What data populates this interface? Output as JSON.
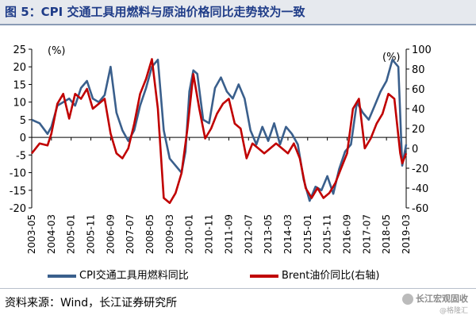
{
  "figure": {
    "title": "图 5：CPI 交通工具用燃料与原油价格同比走势较为一致",
    "source": "资料来源：Wind，长江证券研究所",
    "watermark_main": "长江宏观固收",
    "watermark_sub": "@格隆汇"
  },
  "legend": {
    "series1": "CPI交通工具用燃料同比",
    "series2": "Brent油价同比(右轴)"
  },
  "colors": {
    "cpi": "#3a5f8c",
    "brent": "#c00000"
  },
  "chart_data": {
    "type": "line",
    "left_unit": "(%)",
    "right_unit": "(%)",
    "ylim_left": [
      -20,
      25
    ],
    "ylim_right": [
      -60,
      100
    ],
    "yticks_left": [
      -20,
      -15,
      -10,
      -5,
      0,
      5,
      10,
      15,
      20,
      25
    ],
    "yticks_right": [
      -60,
      -40,
      -20,
      0,
      20,
      40,
      60,
      80,
      100
    ],
    "x_start": "2003-05",
    "x_end": "2019-03",
    "x_ticks": [
      "2003-05",
      "2004-03",
      "2005-01",
      "2005-11",
      "2006-09",
      "2007-07",
      "2008-05",
      "2009-03",
      "2010-01",
      "2010-11",
      "2011-09",
      "2012-07",
      "2013-05",
      "2014-03",
      "2015-01",
      "2015-11",
      "2016-09",
      "2017-07",
      "2018-05",
      "2019-03"
    ],
    "grid": false,
    "legend_position": "bottom",
    "series": [
      {
        "name": "CPI交通工具用燃料同比",
        "axis": "left",
        "points": [
          [
            "2003-05",
            5
          ],
          [
            "2003-09",
            4
          ],
          [
            "2004-01",
            1
          ],
          [
            "2004-03",
            3
          ],
          [
            "2004-06",
            9
          ],
          [
            "2004-09",
            10
          ],
          [
            "2004-12",
            11
          ],
          [
            "2005-03",
            9
          ],
          [
            "2005-06",
            14
          ],
          [
            "2005-09",
            16
          ],
          [
            "2005-12",
            11
          ],
          [
            "2006-03",
            10
          ],
          [
            "2006-06",
            12
          ],
          [
            "2006-09",
            20
          ],
          [
            "2006-12",
            7
          ],
          [
            "2007-03",
            2
          ],
          [
            "2007-06",
            -1
          ],
          [
            "2007-09",
            2
          ],
          [
            "2007-12",
            9
          ],
          [
            "2008-03",
            14
          ],
          [
            "2008-06",
            20
          ],
          [
            "2008-09",
            22
          ],
          [
            "2008-12",
            2
          ],
          [
            "2009-03",
            -6
          ],
          [
            "2009-06",
            -8
          ],
          [
            "2009-09",
            -10
          ],
          [
            "2009-11",
            -4
          ],
          [
            "2010-01",
            13
          ],
          [
            "2010-03",
            19
          ],
          [
            "2010-05",
            18
          ],
          [
            "2010-08",
            5
          ],
          [
            "2010-11",
            4
          ],
          [
            "2011-02",
            14
          ],
          [
            "2011-05",
            17
          ],
          [
            "2011-08",
            13
          ],
          [
            "2011-11",
            11
          ],
          [
            "2012-02",
            15
          ],
          [
            "2012-05",
            11
          ],
          [
            "2012-08",
            2
          ],
          [
            "2012-11",
            -2
          ],
          [
            "2013-02",
            3
          ],
          [
            "2013-05",
            -1
          ],
          [
            "2013-08",
            4
          ],
          [
            "2013-11",
            -2
          ],
          [
            "2014-02",
            3
          ],
          [
            "2014-05",
            1
          ],
          [
            "2014-08",
            -2
          ],
          [
            "2014-11",
            -12
          ],
          [
            "2015-02",
            -18
          ],
          [
            "2015-05",
            -14
          ],
          [
            "2015-08",
            -15
          ],
          [
            "2015-11",
            -11
          ],
          [
            "2016-02",
            -16
          ],
          [
            "2016-05",
            -9
          ],
          [
            "2016-08",
            -4
          ],
          [
            "2016-11",
            -2
          ],
          [
            "2017-02",
            10
          ],
          [
            "2017-05",
            7
          ],
          [
            "2017-08",
            5
          ],
          [
            "2017-11",
            9
          ],
          [
            "2018-02",
            13
          ],
          [
            "2018-05",
            16
          ],
          [
            "2018-08",
            22
          ],
          [
            "2018-11",
            20
          ],
          [
            "2019-01",
            -8
          ],
          [
            "2019-03",
            -2
          ]
        ]
      },
      {
        "name": "Brent油价同比(右轴)",
        "axis": "right",
        "points": [
          [
            "2003-05",
            -5
          ],
          [
            "2003-09",
            5
          ],
          [
            "2004-01",
            3
          ],
          [
            "2004-03",
            15
          ],
          [
            "2004-06",
            45
          ],
          [
            "2004-09",
            55
          ],
          [
            "2004-12",
            30
          ],
          [
            "2005-03",
            55
          ],
          [
            "2005-06",
            50
          ],
          [
            "2005-09",
            60
          ],
          [
            "2005-12",
            40
          ],
          [
            "2006-03",
            45
          ],
          [
            "2006-06",
            50
          ],
          [
            "2006-09",
            15
          ],
          [
            "2006-12",
            -5
          ],
          [
            "2007-03",
            -10
          ],
          [
            "2007-06",
            0
          ],
          [
            "2007-09",
            25
          ],
          [
            "2007-12",
            55
          ],
          [
            "2008-03",
            70
          ],
          [
            "2008-06",
            90
          ],
          [
            "2008-09",
            40
          ],
          [
            "2008-12",
            -50
          ],
          [
            "2009-03",
            -55
          ],
          [
            "2009-06",
            -45
          ],
          [
            "2009-09",
            -25
          ],
          [
            "2009-12",
            20
          ],
          [
            "2010-03",
            75
          ],
          [
            "2010-06",
            40
          ],
          [
            "2010-09",
            10
          ],
          [
            "2010-12",
            20
          ],
          [
            "2011-03",
            35
          ],
          [
            "2011-06",
            45
          ],
          [
            "2011-09",
            50
          ],
          [
            "2011-12",
            25
          ],
          [
            "2012-03",
            20
          ],
          [
            "2012-06",
            -10
          ],
          [
            "2012-09",
            5
          ],
          [
            "2012-12",
            0
          ],
          [
            "2013-03",
            -5
          ],
          [
            "2013-06",
            0
          ],
          [
            "2013-09",
            5
          ],
          [
            "2013-12",
            0
          ],
          [
            "2014-03",
            -5
          ],
          [
            "2014-06",
            5
          ],
          [
            "2014-09",
            -10
          ],
          [
            "2014-12",
            -40
          ],
          [
            "2015-03",
            -50
          ],
          [
            "2015-06",
            -40
          ],
          [
            "2015-09",
            -50
          ],
          [
            "2015-12",
            -45
          ],
          [
            "2016-03",
            -35
          ],
          [
            "2016-06",
            -20
          ],
          [
            "2016-09",
            -5
          ],
          [
            "2016-12",
            40
          ],
          [
            "2017-03",
            50
          ],
          [
            "2017-06",
            0
          ],
          [
            "2017-09",
            10
          ],
          [
            "2017-12",
            25
          ],
          [
            "2018-03",
            35
          ],
          [
            "2018-06",
            55
          ],
          [
            "2018-09",
            50
          ],
          [
            "2018-12",
            -5
          ],
          [
            "2019-01",
            -15
          ],
          [
            "2019-03",
            -5
          ]
        ]
      }
    ]
  }
}
